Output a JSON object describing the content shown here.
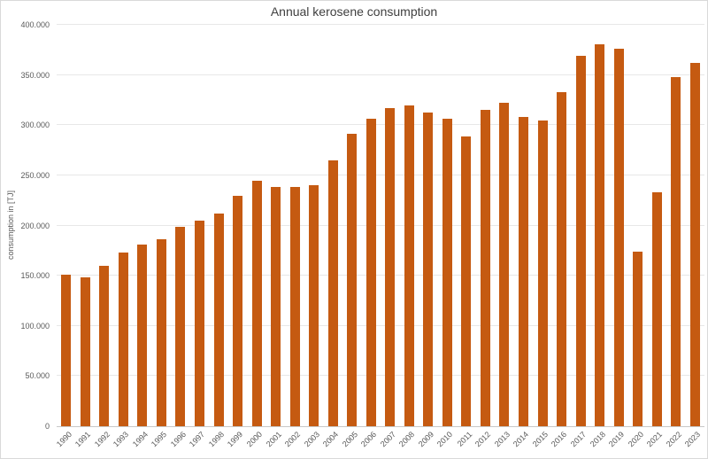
{
  "chart_data": {
    "type": "bar",
    "title": "Annual kerosene consumption",
    "ylabel": "consumption in [TJ]",
    "xlabel": "",
    "categories": [
      "1990",
      "1991",
      "1992",
      "1993",
      "1994",
      "1995",
      "1996",
      "1997",
      "1998",
      "1999",
      "2000",
      "2001",
      "2002",
      "2003",
      "2004",
      "2005",
      "2006",
      "2007",
      "2008",
      "2009",
      "2010",
      "2011",
      "2012",
      "2013",
      "2014",
      "2015",
      "2016",
      "2017",
      "2018",
      "2019",
      "2020",
      "2021",
      "2022",
      "2023"
    ],
    "values": [
      151000,
      148000,
      160000,
      173000,
      181000,
      186000,
      199000,
      205000,
      212000,
      230000,
      245000,
      238000,
      238000,
      240000,
      265000,
      291000,
      306000,
      317000,
      320000,
      313000,
      306000,
      289000,
      315000,
      322000,
      308000,
      305000,
      333000,
      369000,
      381000,
      376000,
      174000,
      233000,
      348000,
      362000
    ],
    "ylim": [
      0,
      400000
    ],
    "ytick_step": 50000,
    "ytick_labels": [
      "0",
      "50.000",
      "100.000",
      "150.000",
      "200.000",
      "250.000",
      "300.000",
      "350.000",
      "400.000"
    ],
    "grid": true,
    "legend_position": "none",
    "colors": {
      "bar": "#C55A11",
      "title": "#404040",
      "axis_labels": "#595959",
      "gridline": "#E7E7E7",
      "axis_line": "#C8C8C8",
      "chart_border": "#D9D9D9",
      "background": "#FFFFFF"
    }
  }
}
